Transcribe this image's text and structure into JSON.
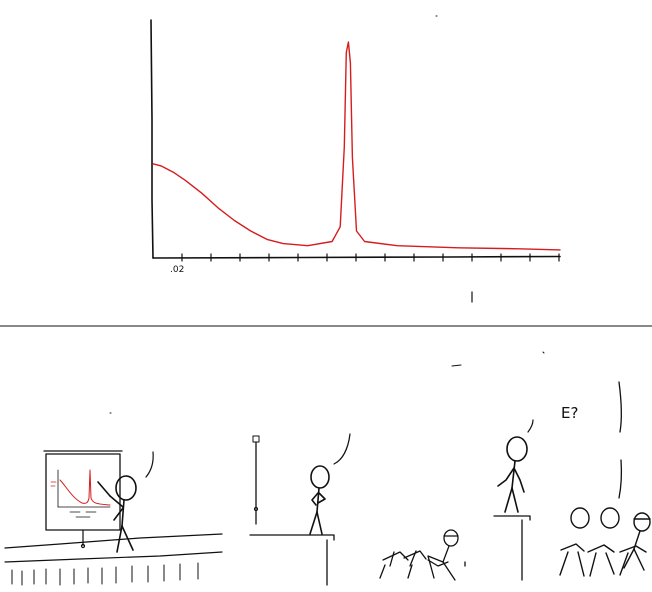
{
  "panel_top": {
    "chart_data": {
      "type": "line",
      "tick_labels": [
        ".02"
      ],
      "series": [
        {
          "color": "#d61d1d",
          "points": [
            [
              0,
              0.42
            ],
            [
              0.02,
              0.41
            ],
            [
              0.05,
              0.38
            ],
            [
              0.08,
              0.34
            ],
            [
              0.12,
              0.28
            ],
            [
              0.16,
              0.21
            ],
            [
              0.2,
              0.15
            ],
            [
              0.24,
              0.1
            ],
            [
              0.28,
              0.06
            ],
            [
              0.32,
              0.04
            ],
            [
              0.38,
              0.03
            ],
            [
              0.44,
              0.05
            ],
            [
              0.46,
              0.12
            ],
            [
              0.47,
              0.5
            ],
            [
              0.475,
              0.95
            ],
            [
              0.48,
              1.0
            ],
            [
              0.485,
              0.9
            ],
            [
              0.49,
              0.45
            ],
            [
              0.5,
              0.1
            ],
            [
              0.52,
              0.05
            ],
            [
              0.6,
              0.03
            ],
            [
              0.75,
              0.02
            ],
            [
              0.9,
              0.015
            ],
            [
              1.0,
              0.01
            ]
          ]
        }
      ]
    }
  },
  "panel_bottom": {
    "speech_right": "E?"
  }
}
